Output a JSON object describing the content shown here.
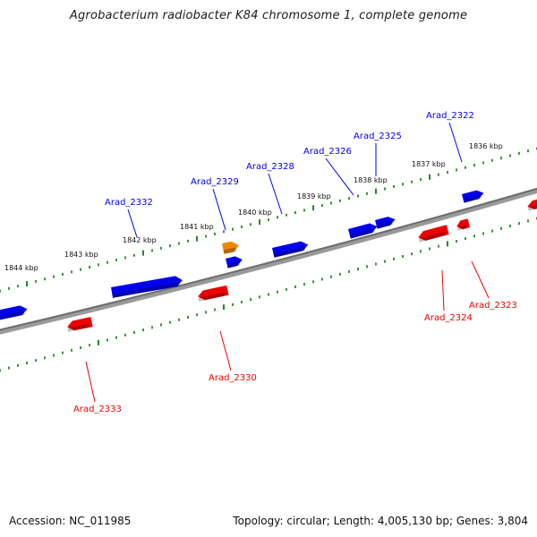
{
  "title": "Agrobacterium radiobacter K84 chromosome 1, complete genome",
  "footer": {
    "accession": "Accession: NC_011985",
    "summary": "Topology: circular; Length: 4,005,130 bp; Genes: 3,804"
  },
  "colors": {
    "forward": "#0000ee",
    "reverse": "#ee0000",
    "other": "#ee8800",
    "backbone": "#777777",
    "ticks": "#228b22"
  },
  "ruler_labels": [
    "1844 kbp",
    "1843 kbp",
    "1842 kbp",
    "1841 kbp",
    "1840 kbp",
    "1839 kbp",
    "1838 kbp",
    "1837 kbp",
    "1836 kbp"
  ],
  "genes": [
    {
      "label": "Arad_2322",
      "strand": "forward"
    },
    {
      "label": "Arad_2325",
      "strand": "forward"
    },
    {
      "label": "Arad_2326",
      "strand": "forward"
    },
    {
      "label": "Arad_2328",
      "strand": "forward"
    },
    {
      "label": "Arad_2329",
      "strand": "forward"
    },
    {
      "label": "Arad_2332",
      "strand": "forward"
    },
    {
      "label": "Arad_2323",
      "strand": "reverse"
    },
    {
      "label": "Arad_2324",
      "strand": "reverse"
    },
    {
      "label": "Arad_2330",
      "strand": "reverse"
    },
    {
      "label": "Arad_2333",
      "strand": "reverse"
    }
  ]
}
